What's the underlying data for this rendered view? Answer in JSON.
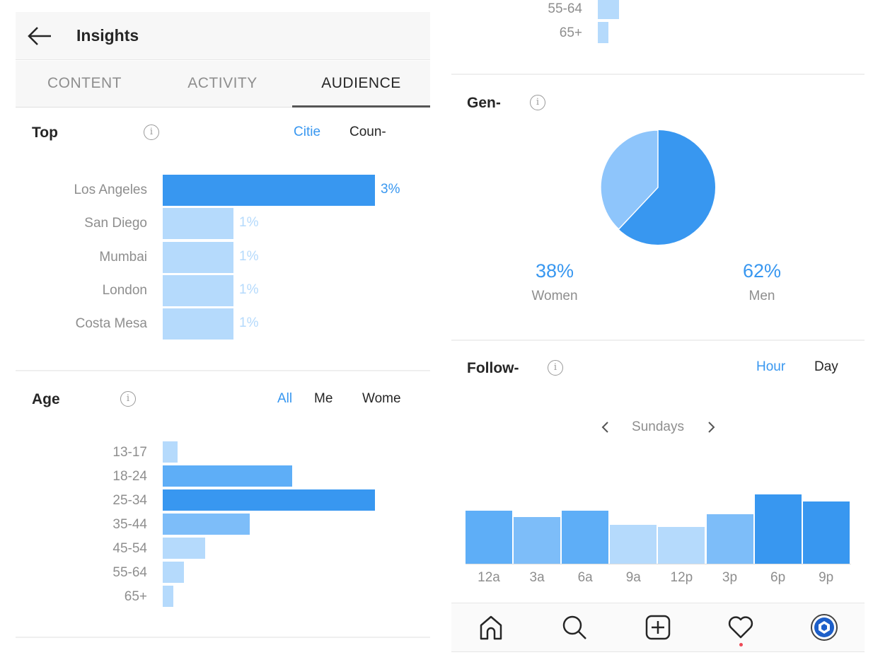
{
  "header": {
    "title": "Insights",
    "back_icon": "arrow-left-icon"
  },
  "tabs": [
    {
      "label": "CONTENT",
      "active": false
    },
    {
      "label": "ACTIVITY",
      "active": false
    },
    {
      "label": "AUDIENCE",
      "active": true
    }
  ],
  "top_locations": {
    "title": "Top",
    "options": [
      "Citie",
      "Coun-"
    ],
    "selected": "Citie",
    "rows": [
      {
        "label": "Los Angeles",
        "value": "3%",
        "pct": 3
      },
      {
        "label": "San Diego",
        "value": "1%",
        "pct": 1
      },
      {
        "label": "Mumbai",
        "value": "1%",
        "pct": 1
      },
      {
        "label": "London",
        "value": "1%",
        "pct": 1
      },
      {
        "label": "Costa Mesa",
        "value": "1%",
        "pct": 1
      }
    ]
  },
  "age": {
    "title": "Age",
    "options": [
      "All",
      "Me",
      "Wome"
    ],
    "selected": "All",
    "rows": [
      {
        "label": "13-17",
        "rel": 0.07
      },
      {
        "label": "18-24",
        "rel": 0.61
      },
      {
        "label": "25-34",
        "rel": 1.0
      },
      {
        "label": "35-44",
        "rel": 0.41
      },
      {
        "label": "45-54",
        "rel": 0.2
      },
      {
        "label": "55-64",
        "rel": 0.1
      },
      {
        "label": "65+",
        "rel": 0.05
      }
    ],
    "continued_rows": [
      {
        "label": "55-64",
        "rel": 0.1
      },
      {
        "label": "65+",
        "rel": 0.05
      }
    ]
  },
  "gender": {
    "title": "Gen-",
    "women": {
      "value": "38%",
      "label": "Women",
      "pct": 38,
      "color": "#8ec5fb"
    },
    "men": {
      "value": "62%",
      "label": "Men",
      "pct": 62,
      "color": "#3897f0"
    }
  },
  "followers": {
    "title": "Follow-",
    "options": [
      "Hour",
      "Day"
    ],
    "selected": "Hour",
    "day": "Sundays",
    "chart_data": {
      "type": "bar",
      "categories": [
        "12a",
        "3a",
        "6a",
        "9a",
        "12p",
        "3p",
        "6p",
        "9p"
      ],
      "values": [
        75,
        66,
        75,
        55,
        52,
        70,
        98,
        88
      ],
      "colors": [
        "#5eaef7",
        "#7dbdf9",
        "#5eaef7",
        "#b5dafc",
        "#b5dafc",
        "#7dbdf9",
        "#3897f0",
        "#3897f0"
      ]
    }
  },
  "bottom_nav": [
    "home-icon",
    "search-icon",
    "add-post-icon",
    "heart-icon",
    "profile-avatar-icon"
  ],
  "colors": {
    "accent": "#3897f0",
    "light": "#b5dafc",
    "notification": "#ed4956"
  }
}
